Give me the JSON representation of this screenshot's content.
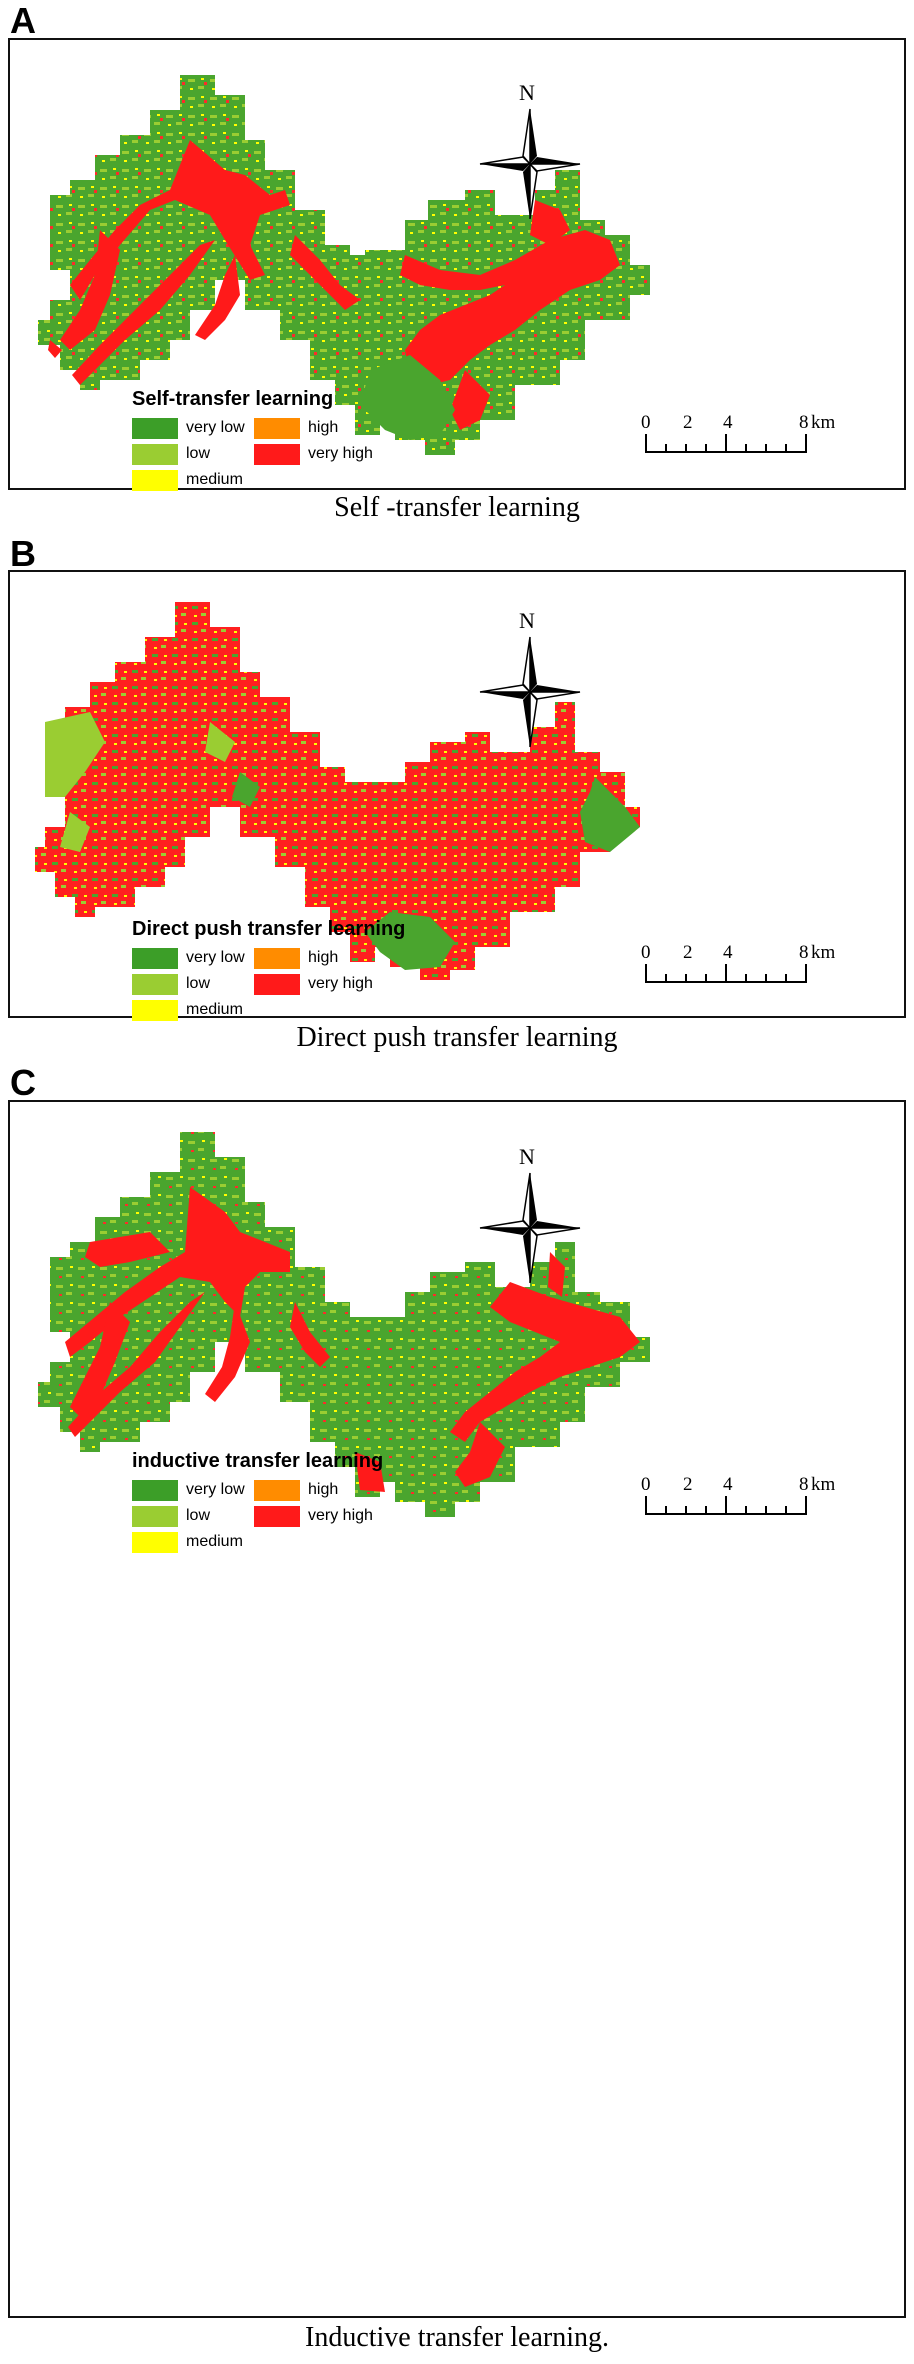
{
  "panels": [
    {
      "letter": "A",
      "legend_title": "Self-transfer  learning",
      "caption": "Self -transfer learning"
    },
    {
      "letter": "B",
      "legend_title": "Direct push transfer learning",
      "caption": "Direct push transfer learning"
    },
    {
      "letter": "C",
      "legend_title": "inductive transfer learning",
      "caption": "Inductive transfer learning."
    }
  ],
  "legend": {
    "very_low": "very low",
    "low": "low",
    "medium": "medium",
    "high": "high",
    "very_high": "very high"
  },
  "colors": {
    "very_low": "#3c9e28",
    "low": "#9acd32",
    "medium": "#ffff00",
    "high": "#ff8c00",
    "very_high": "#ff1a1a"
  },
  "scale": {
    "ticks": [
      "0",
      "2",
      "4",
      "8"
    ],
    "unit": "km"
  },
  "north_label": "N"
}
